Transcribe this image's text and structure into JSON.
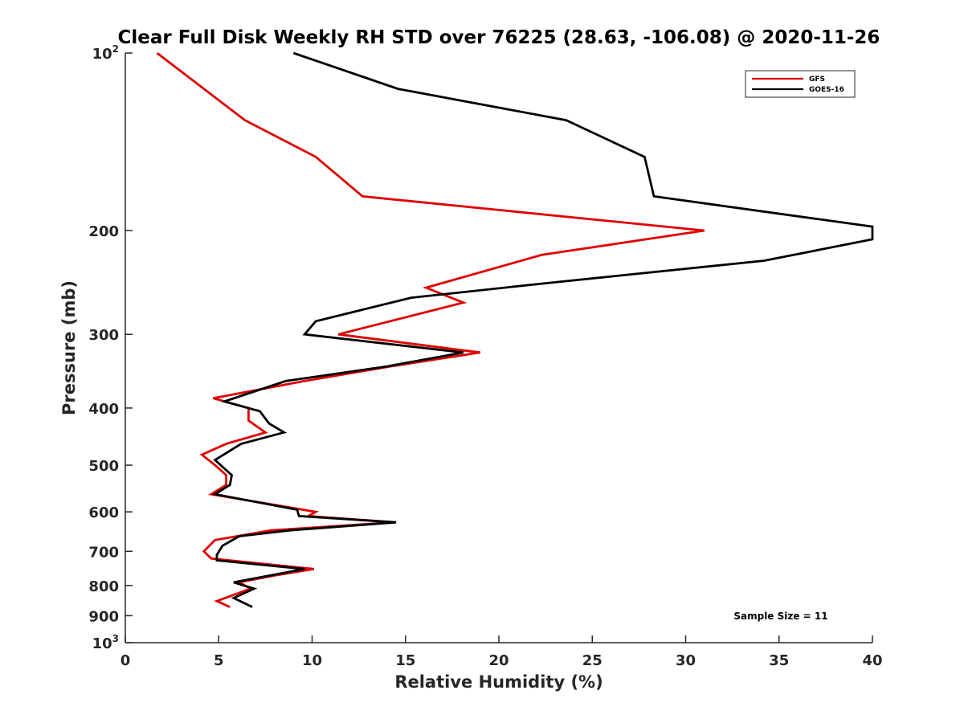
{
  "chart_data": {
    "type": "line",
    "title": "Clear Full Disk Weekly RH STD over 76225 (28.63, -106.08) @ 2020-11-26",
    "xlabel": "Relative Humidity (%)",
    "ylabel": "Pressure (mb)",
    "xlim": [
      0,
      40
    ],
    "ylim": [
      100,
      1000
    ],
    "yscale": "log",
    "yreversed": true,
    "grid": false,
    "legend_position": "top-right",
    "annotation": "Sample Size = 11",
    "xticks": [
      0,
      5,
      10,
      15,
      20,
      25,
      30,
      35,
      40
    ],
    "xtick_labels": [
      "0",
      "5",
      "10",
      "15",
      "20",
      "25",
      "30",
      "35",
      "40"
    ],
    "yticks": [
      {
        "value": 100,
        "base": "10",
        "exp": "2"
      },
      {
        "value": 200,
        "label": "200"
      },
      {
        "value": 300,
        "label": "300"
      },
      {
        "value": 400,
        "label": "400"
      },
      {
        "value": 500,
        "label": "500"
      },
      {
        "value": 600,
        "label": "600"
      },
      {
        "value": 700,
        "label": "700"
      },
      {
        "value": 800,
        "label": "800"
      },
      {
        "value": 900,
        "label": "900"
      },
      {
        "value": 1000,
        "base": "10",
        "exp": "3"
      }
    ],
    "series": [
      {
        "name": "GFS",
        "color": "#e00000",
        "points": [
          [
            1.7,
            100
          ],
          [
            6.4,
            130
          ],
          [
            10.2,
            150
          ],
          [
            12.7,
            175
          ],
          [
            31.0,
            200
          ],
          [
            22.3,
            220
          ],
          [
            16.1,
            250
          ],
          [
            18.1,
            265
          ],
          [
            11.4,
            300
          ],
          [
            19.0,
            322
          ],
          [
            14.2,
            340
          ],
          [
            9.6,
            360
          ],
          [
            4.7,
            385
          ],
          [
            6.6,
            400
          ],
          [
            6.6,
            420
          ],
          [
            7.5,
            440
          ],
          [
            5.4,
            460
          ],
          [
            4.1,
            480
          ],
          [
            4.8,
            500
          ],
          [
            5.4,
            520
          ],
          [
            5.4,
            540
          ],
          [
            4.6,
            560
          ],
          [
            10.2,
            600
          ],
          [
            9.8,
            610
          ],
          [
            14.4,
            625
          ],
          [
            7.8,
            645
          ],
          [
            4.8,
            670
          ],
          [
            4.2,
            700
          ],
          [
            4.6,
            720
          ],
          [
            10.1,
            750
          ],
          [
            7.9,
            770
          ],
          [
            6.1,
            790
          ],
          [
            6.7,
            810
          ],
          [
            4.9,
            850
          ],
          [
            5.6,
            870
          ]
        ]
      },
      {
        "name": "GOES-16",
        "color": "#000000",
        "points": [
          [
            9.0,
            100
          ],
          [
            14.6,
            115
          ],
          [
            23.6,
            130
          ],
          [
            27.8,
            150
          ],
          [
            28.3,
            175
          ],
          [
            40.0,
            197
          ],
          [
            40.0,
            207
          ],
          [
            34.2,
            225
          ],
          [
            22.9,
            245
          ],
          [
            15.3,
            260
          ],
          [
            10.2,
            285
          ],
          [
            9.6,
            300
          ],
          [
            18.1,
            322
          ],
          [
            14.0,
            340
          ],
          [
            8.6,
            360
          ],
          [
            5.3,
            390
          ],
          [
            7.2,
            405
          ],
          [
            7.7,
            425
          ],
          [
            8.5,
            440
          ],
          [
            6.2,
            460
          ],
          [
            4.8,
            490
          ],
          [
            5.7,
            520
          ],
          [
            5.6,
            540
          ],
          [
            4.8,
            560
          ],
          [
            9.2,
            595
          ],
          [
            9.3,
            610
          ],
          [
            14.5,
            625
          ],
          [
            8.8,
            645
          ],
          [
            6.1,
            660
          ],
          [
            5.2,
            685
          ],
          [
            4.9,
            710
          ],
          [
            4.9,
            725
          ],
          [
            9.6,
            750
          ],
          [
            5.8,
            790
          ],
          [
            6.9,
            810
          ],
          [
            5.8,
            840
          ],
          [
            6.8,
            870
          ]
        ]
      }
    ]
  }
}
